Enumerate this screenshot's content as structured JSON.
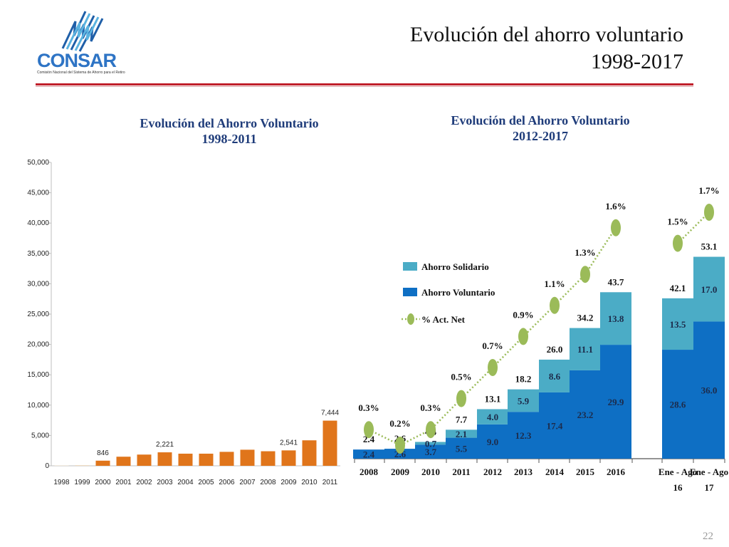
{
  "header": {
    "title_line1": "Evolución del ahorro voluntario",
    "title_line2": "1998-2017",
    "logo_text": "CONSAR",
    "logo_subtitle": "Comisión Nacional del Sistema de Ahorro para el Retiro",
    "page_number": "22"
  },
  "colors": {
    "orange": "#e0751b",
    "light_bar": "#f1ddc4",
    "solidario": "#4bacc6",
    "voluntario": "#0e6fc4",
    "line": "#9bbb59",
    "rule": "#c0202c"
  },
  "chart_data": [
    {
      "type": "bar",
      "title": "Evolución del Ahorro Voluntario 1998-2011",
      "title_line1": "Evolución del Ahorro Voluntario",
      "title_line2": "1998-2011",
      "categories": [
        "1998",
        "1999",
        "2000",
        "2001",
        "2002",
        "2003",
        "2004",
        "2005",
        "2006",
        "2007",
        "2008",
        "2009",
        "2010",
        "2011"
      ],
      "values": [
        50,
        120,
        846,
        1500,
        1850,
        2221,
        2000,
        2000,
        2300,
        2650,
        2400,
        2541,
        4200,
        7444
      ],
      "data_labels": [
        "",
        "",
        "846",
        "",
        "",
        "2,221",
        "",
        "",
        "",
        "",
        "",
        "2,541",
        "",
        "7,444"
      ],
      "yticks": [
        "0",
        "5,000",
        "10,000",
        "15,000",
        "20,000",
        "25,000",
        "30,000",
        "35,000",
        "40,000",
        "45,000",
        "50,000"
      ],
      "ylim": [
        0,
        50000
      ],
      "xlabel": "",
      "ylabel": ""
    },
    {
      "type": "bar",
      "stacked": true,
      "title": "Evolución del Ahorro Voluntario 2012-2017",
      "title_line1": "Evolución del Ahorro Voluntario",
      "title_line2": "2012-2017",
      "categories": [
        "2008",
        "2009",
        "2010",
        "2011",
        "2012",
        "2013",
        "2014",
        "2015",
        "2016",
        "Ene - Ago 16",
        "Ene - Ago 17"
      ],
      "category_lines": [
        [
          "2008"
        ],
        [
          "2009"
        ],
        [
          "2010"
        ],
        [
          "2011"
        ],
        [
          "2012"
        ],
        [
          "2013"
        ],
        [
          "2014"
        ],
        [
          "2015"
        ],
        [
          "2016"
        ],
        [
          "Ene - Ago",
          "16"
        ],
        [
          "Ene - Ago",
          "17"
        ]
      ],
      "series": [
        {
          "name": "Ahorro Voluntario",
          "values": [
            2.4,
            2.6,
            3.7,
            5.5,
            9.0,
            12.3,
            17.4,
            23.2,
            29.9,
            28.6,
            36.0
          ],
          "labels": [
            "2.4",
            "2.6",
            "3.7",
            "5.5",
            "9.0",
            "12.3",
            "17.4",
            "23.2",
            "29.9",
            "28.6",
            "36.0"
          ]
        },
        {
          "name": "Ahorro Solidario",
          "values": [
            0,
            0,
            0.7,
            2.1,
            4.0,
            5.9,
            8.6,
            11.1,
            13.8,
            13.5,
            17.0
          ],
          "labels": [
            "",
            "",
            "0.7",
            "2.1",
            "4.0",
            "5.9",
            "8.6",
            "11.1",
            "13.8",
            "13.5",
            "17.0"
          ]
        }
      ],
      "totals": [
        "2.4",
        "2.6",
        "4.4",
        "7.7",
        "13.1",
        "18.2",
        "26.0",
        "34.2",
        "43.7",
        "42.1",
        "53.1"
      ],
      "line_series": {
        "name": "% Act. Net",
        "values": [
          0.3,
          0.2,
          0.3,
          0.5,
          0.7,
          0.9,
          1.1,
          1.3,
          1.6,
          1.5,
          1.7
        ],
        "labels": [
          "0.3%",
          "0.2%",
          "0.3%",
          "0.5%",
          "0.7%",
          "0.9%",
          "1.1%",
          "1.3%",
          "1.6%",
          "1.5%",
          "1.7%"
        ]
      },
      "legend": [
        "Ahorro Solidario",
        "Ahorro Voluntario",
        "% Act. Net"
      ],
      "legend_position": "upper-left",
      "ylim": [
        0,
        60
      ]
    }
  ]
}
